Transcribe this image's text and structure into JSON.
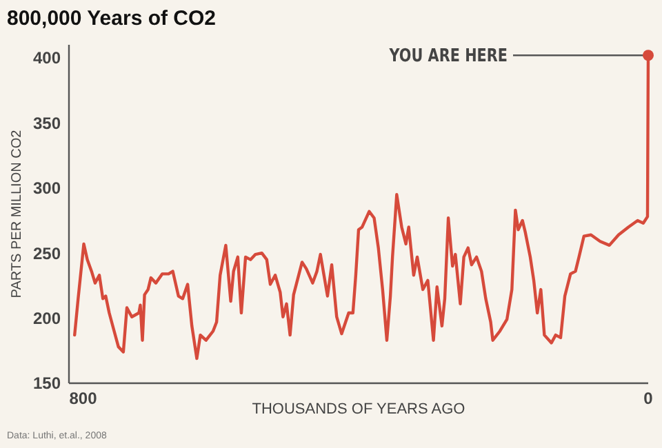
{
  "chart_data": {
    "type": "line",
    "title": "800,000 Years of CO2",
    "xlabel": "THOUSANDS OF YEARS AGO",
    "ylabel": "PARTS PER MILLION  CO2",
    "xlim": [
      820,
      0
    ],
    "xticks": [
      800,
      0
    ],
    "ylim": [
      150,
      410
    ],
    "yticks": [
      150,
      200,
      250,
      300,
      350,
      400
    ],
    "grid": false,
    "marker": "none",
    "line_style": "solid",
    "series": [
      {
        "color": "#d64a3b",
        "x": [
          812,
          807,
          799,
          794,
          788,
          783,
          777,
          772,
          768,
          763,
          756,
          750,
          743,
          738,
          731,
          721,
          719,
          716,
          713,
          708,
          704,
          697,
          688,
          679,
          673,
          665,
          659,
          652,
          646,
          639,
          634,
          626,
          616,
          611,
          606,
          598,
          591,
          587,
          581,
          576,
          570,
          563,
          556,
          547,
          540,
          535,
          528,
          521,
          517,
          512,
          507,
          502,
          490,
          484,
          475,
          469,
          464,
          459,
          454,
          448,
          441,
          434,
          424,
          418,
          414,
          410,
          405,
          395,
          388,
          382,
          376,
          370,
          365,
          362,
          356,
          349,
          343,
          339,
          332,
          327,
          319,
          312,
          304,
          299,
          292,
          288,
          283,
          277,
          273,
          266,
          261,
          255,
          250,
          243,
          236,
          230,
          223,
          220,
          210,
          200,
          193,
          188,
          184,
          178,
          174,
          167,
          162,
          157,
          152,
          147,
          137,
          131,
          124,
          118,
          110,
          103,
          98,
          91,
          81,
          68,
          55,
          42,
          28,
          15,
          7,
          1,
          0
        ],
        "values": [
          187,
          215,
          257,
          245,
          236,
          227,
          233,
          215,
          217,
          204,
          190,
          178,
          174,
          208,
          201,
          204,
          210,
          183,
          218,
          222,
          231,
          227,
          234,
          234,
          236,
          217,
          215,
          226,
          194,
          169,
          187,
          183,
          190,
          197,
          233,
          256,
          213,
          236,
          247,
          204,
          247,
          245,
          249,
          250,
          245,
          226,
          233,
          220,
          201,
          211,
          187,
          218,
          243,
          238,
          227,
          236,
          249,
          233,
          217,
          241,
          201,
          188,
          204,
          204,
          233,
          268,
          270,
          282,
          277,
          254,
          222,
          183,
          217,
          247,
          295,
          270,
          257,
          270,
          233,
          247,
          222,
          229,
          183,
          224,
          194,
          215,
          277,
          240,
          249,
          211,
          247,
          254,
          241,
          247,
          236,
          215,
          197,
          183,
          190,
          199,
          222,
          283,
          268,
          275,
          266,
          247,
          229,
          204,
          222,
          187,
          181,
          187,
          185,
          217,
          234,
          236,
          247,
          263,
          264,
          259,
          256,
          264,
          270,
          275,
          273,
          278,
          402
        ]
      }
    ],
    "annotations": [
      {
        "text": "YOU ARE HERE",
        "x": 0,
        "y": 402
      },
      "Data: Luthi, et.al., 2008"
    ]
  }
}
